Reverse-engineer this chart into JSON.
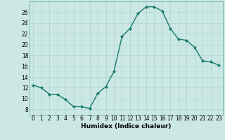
{
  "x": [
    0,
    1,
    2,
    3,
    4,
    5,
    6,
    7,
    8,
    9,
    10,
    11,
    12,
    13,
    14,
    15,
    16,
    17,
    18,
    19,
    20,
    21,
    22,
    23
  ],
  "y": [
    12.5,
    12.0,
    10.8,
    10.8,
    9.8,
    8.5,
    8.5,
    8.2,
    11.0,
    12.2,
    15.0,
    21.5,
    23.0,
    25.8,
    27.0,
    27.0,
    26.2,
    23.0,
    21.0,
    20.8,
    19.5,
    17.0,
    16.8,
    16.2
  ],
  "line_color": "#1a7a6e",
  "marker": "D",
  "marker_size": 2.0,
  "bg_color": "#cce8e4",
  "grid_color": "#b0d8d4",
  "xlabel": "Humidex (Indice chaleur)",
  "ylim": [
    7,
    28
  ],
  "xlim": [
    -0.5,
    23.5
  ],
  "yticks": [
    8,
    10,
    12,
    14,
    16,
    18,
    20,
    22,
    24,
    26
  ],
  "xticks": [
    0,
    1,
    2,
    3,
    4,
    5,
    6,
    7,
    8,
    9,
    10,
    11,
    12,
    13,
    14,
    15,
    16,
    17,
    18,
    19,
    20,
    21,
    22,
    23
  ],
  "xlabel_fontsize": 6.5,
  "tick_fontsize": 5.5,
  "line_width": 1.0,
  "spine_color": "#6aada8"
}
